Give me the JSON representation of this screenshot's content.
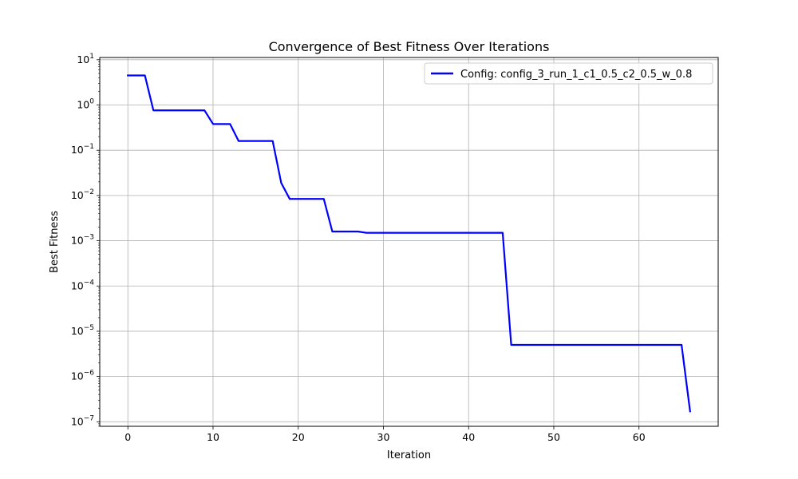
{
  "chart_data": {
    "type": "line",
    "title": "Convergence of Best Fitness Over Iterations",
    "xlabel": "Iteration",
    "ylabel": "Best Fitness",
    "xlim": [
      -3.3,
      69.3
    ],
    "ylim_log10": [
      -7.1,
      1.05
    ],
    "yscale": "log",
    "grid": true,
    "legend_position": "top-right",
    "x_ticks": [
      0,
      10,
      20,
      30,
      40,
      50,
      60
    ],
    "y_ticks": [
      {
        "exp": 1,
        "base": "10",
        "sup": "1"
      },
      {
        "exp": 0,
        "base": "10",
        "sup": "0"
      },
      {
        "exp": -1,
        "base": "10",
        "sup": "−1"
      },
      {
        "exp": -2,
        "base": "10",
        "sup": "−2"
      },
      {
        "exp": -3,
        "base": "10",
        "sup": "−3"
      },
      {
        "exp": -4,
        "base": "10",
        "sup": "−4"
      },
      {
        "exp": -5,
        "base": "10",
        "sup": "−5"
      },
      {
        "exp": -6,
        "base": "10",
        "sup": "−6"
      },
      {
        "exp": -7,
        "base": "10",
        "sup": "−7"
      }
    ],
    "series": [
      {
        "name": "Config: config_3_run_1_c1_0.5_c2_0.5_w_0.8",
        "color": "#0000ff",
        "x": [
          0,
          1,
          2,
          3,
          4,
          5,
          6,
          7,
          8,
          9,
          10,
          11,
          12,
          13,
          14,
          15,
          16,
          17,
          18,
          19,
          20,
          21,
          22,
          23,
          24,
          25,
          26,
          27,
          28,
          29,
          30,
          31,
          32,
          33,
          34,
          35,
          36,
          37,
          38,
          39,
          40,
          41,
          42,
          43,
          44,
          45,
          46,
          47,
          48,
          49,
          50,
          51,
          52,
          53,
          54,
          55,
          56,
          57,
          58,
          59,
          60,
          61,
          62,
          63,
          64,
          65,
          66
        ],
        "values": [
          4.5,
          4.5,
          4.5,
          0.76,
          0.76,
          0.76,
          0.76,
          0.76,
          0.76,
          0.76,
          0.38,
          0.38,
          0.38,
          0.16,
          0.16,
          0.16,
          0.16,
          0.16,
          0.019,
          0.0084,
          0.0084,
          0.0084,
          0.0084,
          0.0084,
          0.0016,
          0.0016,
          0.0016,
          0.0016,
          0.0015,
          0.0015,
          0.0015,
          0.0015,
          0.0015,
          0.0015,
          0.0015,
          0.0015,
          0.0015,
          0.0015,
          0.0015,
          0.0015,
          0.0015,
          0.0015,
          0.0015,
          0.0015,
          0.0015,
          5e-06,
          5e-06,
          5e-06,
          5e-06,
          5e-06,
          5e-06,
          5e-06,
          5e-06,
          5e-06,
          5e-06,
          5e-06,
          5e-06,
          5e-06,
          5e-06,
          5e-06,
          5e-06,
          5e-06,
          5e-06,
          5e-06,
          5e-06,
          5e-06,
          1.7e-07
        ]
      }
    ]
  }
}
